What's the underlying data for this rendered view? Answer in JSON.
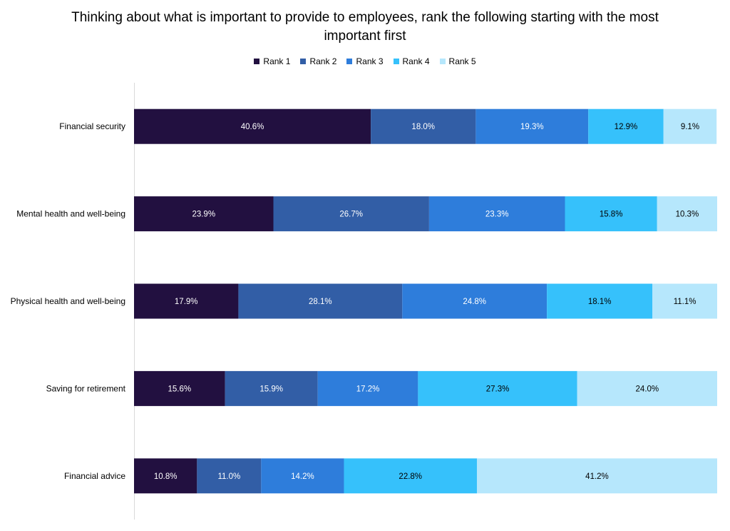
{
  "chart_data": {
    "type": "bar",
    "orientation": "horizontal",
    "stacked": true,
    "percent_stacked": true,
    "title": "Thinking about what is important to provide to employees, rank the following starting with the most important first",
    "legend_position": "top",
    "grid": false,
    "xlim": [
      0,
      100
    ],
    "categories": [
      "Financial security",
      "Mental health and well-being",
      "Physical health and well-being",
      "Saving for retirement",
      "Financial advice"
    ],
    "series": [
      {
        "name": "Rank 1",
        "color": "#221040",
        "label_color": "#ffffff",
        "values": [
          40.6,
          23.9,
          17.9,
          15.6,
          10.8
        ],
        "labels": [
          "40.6%",
          "23.9%",
          "17.9%",
          "15.6%",
          "10.8%"
        ]
      },
      {
        "name": "Rank 2",
        "color": "#325ea6",
        "label_color": "#ffffff",
        "values": [
          18.0,
          26.7,
          28.1,
          15.9,
          11.0
        ],
        "labels": [
          "18.0%",
          "26.7%",
          "28.1%",
          "15.9%",
          "11.0%"
        ]
      },
      {
        "name": "Rank 3",
        "color": "#2e7ddb",
        "label_color": "#ffffff",
        "values": [
          19.3,
          23.3,
          24.8,
          17.2,
          14.2
        ],
        "labels": [
          "19.3%",
          "23.3%",
          "24.8%",
          "17.2%",
          "14.2%"
        ]
      },
      {
        "name": "Rank 4",
        "color": "#36c1fb",
        "label_color": "#000000",
        "values": [
          12.9,
          15.8,
          18.1,
          27.3,
          22.8
        ],
        "labels": [
          "12.9%",
          "15.8%",
          "18.1%",
          "27.3%",
          "22.8%"
        ]
      },
      {
        "name": "Rank 5",
        "color": "#b6e7fc",
        "label_color": "#000000",
        "values": [
          9.1,
          10.3,
          11.1,
          24.0,
          41.2
        ],
        "labels": [
          "9.1%",
          "10.3%",
          "11.1%",
          "24.0%",
          "41.2%"
        ]
      }
    ]
  }
}
